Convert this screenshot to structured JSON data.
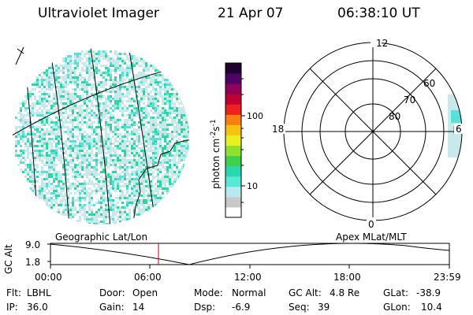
{
  "header": {
    "instrument": "Ultraviolet Imager",
    "date": "21 Apr 07",
    "time": "06:38:10 UT"
  },
  "colorbar": {
    "unit_label": "photon cm",
    "unit_sup1": "-2",
    "unit_mid": "s",
    "unit_sup2": "-1",
    "ticks": [
      "100",
      "10"
    ],
    "colors": [
      "#ffffff",
      "#c8c8c8",
      "#b8e8f0",
      "#58e8d8",
      "#28d8b0",
      "#40d050",
      "#90e030",
      "#e8f020",
      "#f8c010",
      "#f88010",
      "#f02020",
      "#c00030",
      "#900058",
      "#500068",
      "#200030"
    ]
  },
  "polar_plot": {
    "mlt_labels": {
      "top": "12",
      "left": "18",
      "right": "6",
      "bottom": "0"
    },
    "lat_labels": [
      "80",
      "70",
      "60"
    ]
  },
  "timeline": {
    "left_label": "Geographic Lat/Lon",
    "right_label": "Apex MLat/MLT",
    "y_label": "GC Alt",
    "y_ticks": [
      "9.0",
      "1.8"
    ],
    "x_ticks": [
      "00:00",
      "06:00",
      "12:00",
      "18:00",
      "23:59"
    ],
    "current_marker_time": "06:38:10"
  },
  "status": {
    "flt_label": "Flt:",
    "flt_value": "LBHL",
    "ip_label": "IP:",
    "ip_value": "36.0",
    "door_label": "Door:",
    "door_value": "Open",
    "gain_label": "Gain:",
    "gain_value": "14",
    "mode_label": "Mode:",
    "mode_value": "Normal",
    "dsp_label": "Dsp:",
    "dsp_value": "-6.9",
    "gcalt_label": "GC Alt:",
    "gcalt_value": "4.8 Re",
    "seq_label": "Seq:",
    "seq_value": "39",
    "glat_label": "GLat:",
    "glat_value": "-38.9",
    "glon_label": "GLon:",
    "glon_value": "10.4"
  },
  "colors": {
    "aurora_low": "#c8e8ec",
    "aurora_mid": "#5ae0d8",
    "aurora_high": "#2ad8a0",
    "marker": "#c00000"
  }
}
